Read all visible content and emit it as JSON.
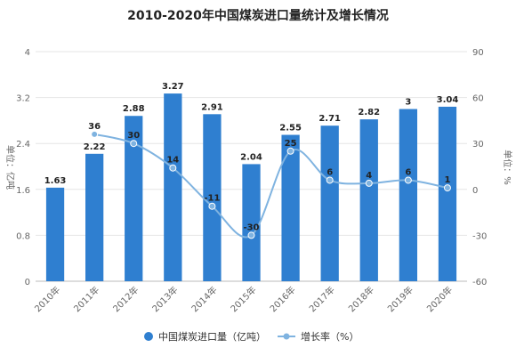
{
  "chart_data": {
    "type": "bar",
    "title": "2010-2020年中国煤炭进口量统计及增长情况",
    "categories": [
      "2010年",
      "2011年",
      "2012年",
      "2013年",
      "2014年",
      "2015年",
      "2016年",
      "2017年",
      "2018年",
      "2019年",
      "2020年"
    ],
    "series": [
      {
        "name": "中国煤炭进口量（亿吨）",
        "type": "bar",
        "axis": "left",
        "color": "#2f7fd0",
        "values": [
          1.63,
          2.22,
          2.88,
          3.27,
          2.91,
          2.04,
          2.55,
          2.71,
          2.82,
          3,
          3.04
        ],
        "labels": [
          "1.63",
          "2.22",
          "2.88",
          "3.27",
          "2.91",
          "2.04",
          "2.55",
          "2.71",
          "2.82",
          "3",
          "3.04"
        ]
      },
      {
        "name": "增长率（%）",
        "type": "line",
        "axis": "right",
        "color": "#7fb3e0",
        "values": [
          null,
          36,
          30,
          14,
          -11,
          -30,
          25,
          6,
          4,
          6,
          1
        ],
        "labels": [
          "",
          "36",
          "30",
          "14",
          "-11",
          "-30",
          "25",
          "6",
          "4",
          "6",
          "1"
        ]
      }
    ],
    "y_left": {
      "label": "单位：亿吨",
      "ylim": [
        0,
        4
      ],
      "ticks": [
        "0",
        "0.8",
        "1.6",
        "2.4",
        "3.2",
        "4"
      ]
    },
    "y_right": {
      "label": "单位：%",
      "ylim": [
        -60,
        90
      ],
      "ticks": [
        "-60",
        "-30",
        "0",
        "30",
        "60",
        "90"
      ]
    },
    "grid": true,
    "legend_position": "bottom"
  }
}
